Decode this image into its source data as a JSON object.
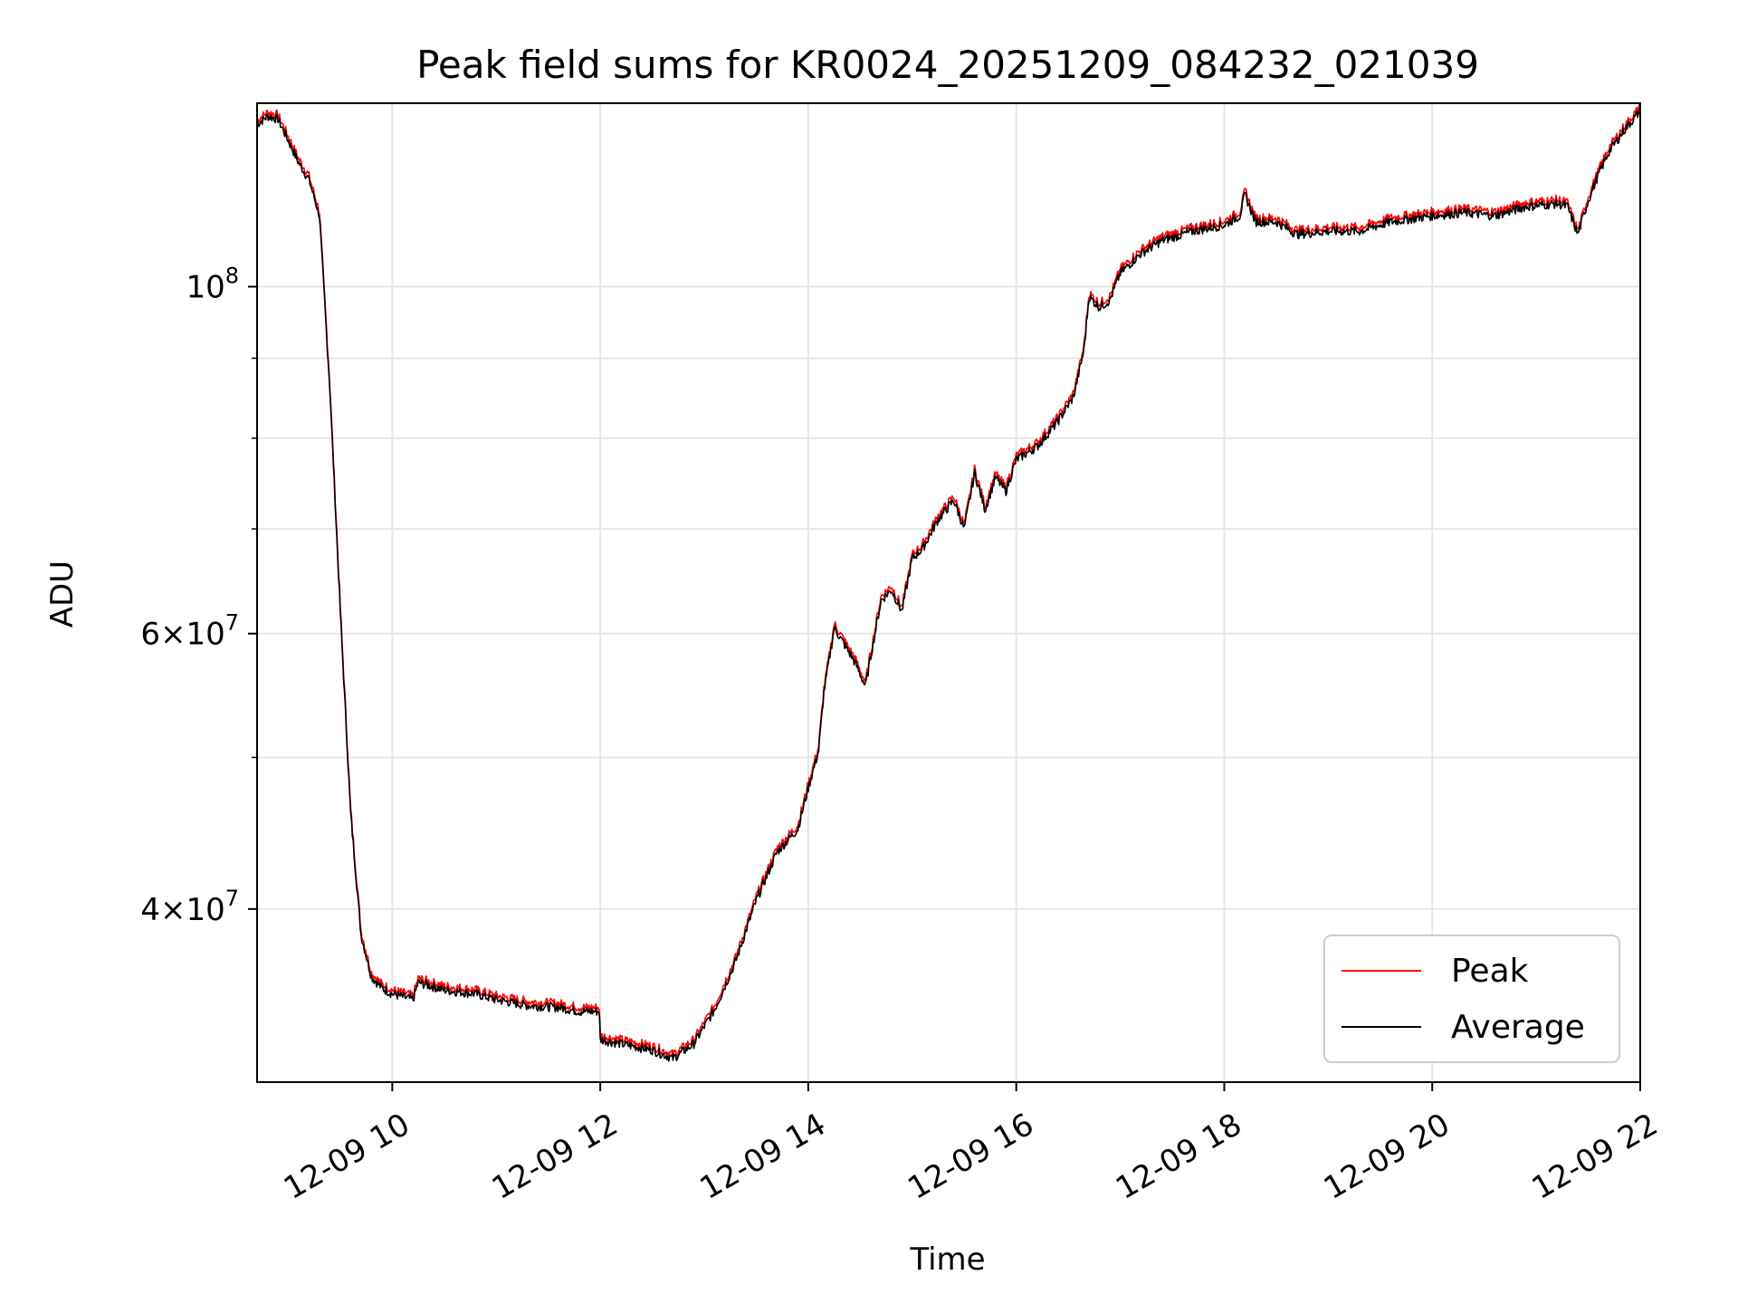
{
  "chart_data": {
    "type": "line",
    "title": "Peak field sums for KR0024_20251209_084232_021039",
    "xlabel": "Time",
    "ylabel": "ADU",
    "yscale": "log",
    "ylim": [
      31000000,
      131000000
    ],
    "xlim_hours": [
      8.7,
      22.0
    ],
    "grid": true,
    "x_ticks": [
      {
        "hour": 10,
        "label": "12-09 10"
      },
      {
        "hour": 12,
        "label": "12-09 12"
      },
      {
        "hour": 14,
        "label": "12-09 14"
      },
      {
        "hour": 16,
        "label": "12-09 16"
      },
      {
        "hour": 18,
        "label": "12-09 18"
      },
      {
        "hour": 20,
        "label": "12-09 20"
      },
      {
        "hour": 22,
        "label": "12-09 22"
      }
    ],
    "y_major_ticks": [
      {
        "value": 40000000,
        "base": "4",
        "exp": "7"
      },
      {
        "value": 60000000,
        "base": "6",
        "exp": "7"
      },
      {
        "value": 100000000,
        "base": "10",
        "exp": "8"
      }
    ],
    "y_minor_ticks": [
      50000000,
      70000000,
      80000000,
      90000000
    ],
    "legend": {
      "position": "lower-right",
      "entries": [
        "Peak",
        "Average"
      ]
    },
    "series": [
      {
        "name": "Peak",
        "color": "#ff0000",
        "offset": 1.006,
        "points": [
          [
            8.7,
            127000000
          ],
          [
            8.8,
            128500000
          ],
          [
            8.9,
            128000000
          ],
          [
            9.0,
            124000000
          ],
          [
            9.1,
            120000000
          ],
          [
            9.2,
            117000000
          ],
          [
            9.3,
            111000000
          ],
          [
            9.4,
            86000000
          ],
          [
            9.5,
            62000000
          ],
          [
            9.6,
            46000000
          ],
          [
            9.7,
            38500000
          ],
          [
            9.8,
            36200000
          ],
          [
            9.9,
            35600000
          ],
          [
            10.0,
            35300000
          ],
          [
            10.2,
            35000000
          ],
          [
            10.25,
            35900000
          ],
          [
            10.5,
            35500000
          ],
          [
            10.8,
            35300000
          ],
          [
            11.0,
            35000000
          ],
          [
            11.3,
            34700000
          ],
          [
            11.6,
            34600000
          ],
          [
            11.8,
            34400000
          ],
          [
            11.99,
            34400000
          ],
          [
            12.0,
            33000000
          ],
          [
            12.3,
            32700000
          ],
          [
            12.5,
            32500000
          ],
          [
            12.7,
            32100000
          ],
          [
            12.9,
            32800000
          ],
          [
            13.1,
            34500000
          ],
          [
            13.3,
            37000000
          ],
          [
            13.5,
            40500000
          ],
          [
            13.7,
            43500000
          ],
          [
            13.9,
            45000000
          ],
          [
            14.0,
            47800000
          ],
          [
            14.1,
            50500000
          ],
          [
            14.15,
            55000000
          ],
          [
            14.25,
            60500000
          ],
          [
            14.35,
            59000000
          ],
          [
            14.45,
            57500000
          ],
          [
            14.55,
            55500000
          ],
          [
            14.6,
            58000000
          ],
          [
            14.7,
            63000000
          ],
          [
            14.8,
            64000000
          ],
          [
            14.9,
            62000000
          ],
          [
            15.0,
            67000000
          ],
          [
            15.1,
            68000000
          ],
          [
            15.25,
            71000000
          ],
          [
            15.4,
            73000000
          ],
          [
            15.5,
            70000000
          ],
          [
            15.6,
            76000000
          ],
          [
            15.7,
            72000000
          ],
          [
            15.8,
            75500000
          ],
          [
            15.9,
            74000000
          ],
          [
            16.0,
            77500000
          ],
          [
            16.2,
            79000000
          ],
          [
            16.4,
            82000000
          ],
          [
            16.55,
            85000000
          ],
          [
            16.65,
            91000000
          ],
          [
            16.7,
            98500000
          ],
          [
            16.8,
            97000000
          ],
          [
            16.9,
            98000000
          ],
          [
            17.0,
            102000000
          ],
          [
            17.2,
            105000000
          ],
          [
            17.4,
            107000000
          ],
          [
            17.7,
            108500000
          ],
          [
            18.0,
            109500000
          ],
          [
            18.15,
            111000000
          ],
          [
            18.2,
            114500000
          ],
          [
            18.3,
            110000000
          ],
          [
            18.5,
            110000000
          ],
          [
            18.7,
            108000000
          ],
          [
            19.0,
            108500000
          ],
          [
            19.3,
            108500000
          ],
          [
            19.6,
            110000000
          ],
          [
            20.0,
            111000000
          ],
          [
            20.3,
            111500000
          ],
          [
            20.6,
            111000000
          ],
          [
            20.9,
            112500000
          ],
          [
            21.2,
            113000000
          ],
          [
            21.3,
            112500000
          ],
          [
            21.4,
            108000000
          ],
          [
            21.5,
            113500000
          ],
          [
            21.6,
            118000000
          ],
          [
            21.7,
            122000000
          ],
          [
            21.85,
            126000000
          ],
          [
            22.0,
            129500000
          ]
        ]
      },
      {
        "name": "Average",
        "color": "#000000",
        "offset": 1.0,
        "points": [
          [
            8.7,
            127000000
          ],
          [
            8.8,
            128500000
          ],
          [
            8.9,
            128000000
          ],
          [
            9.0,
            124000000
          ],
          [
            9.1,
            120000000
          ],
          [
            9.2,
            117000000
          ],
          [
            9.3,
            111000000
          ],
          [
            9.4,
            86000000
          ],
          [
            9.5,
            62000000
          ],
          [
            9.6,
            46000000
          ],
          [
            9.7,
            38500000
          ],
          [
            9.8,
            36200000
          ],
          [
            9.9,
            35600000
          ],
          [
            10.0,
            35300000
          ],
          [
            10.2,
            35000000
          ],
          [
            10.25,
            35900000
          ],
          [
            10.5,
            35500000
          ],
          [
            10.8,
            35300000
          ],
          [
            11.0,
            35000000
          ],
          [
            11.3,
            34700000
          ],
          [
            11.6,
            34600000
          ],
          [
            11.8,
            34400000
          ],
          [
            11.99,
            34400000
          ],
          [
            12.0,
            33000000
          ],
          [
            12.3,
            32700000
          ],
          [
            12.5,
            32500000
          ],
          [
            12.7,
            32100000
          ],
          [
            12.9,
            32800000
          ],
          [
            13.1,
            34500000
          ],
          [
            13.3,
            37000000
          ],
          [
            13.5,
            40500000
          ],
          [
            13.7,
            43500000
          ],
          [
            13.9,
            45000000
          ],
          [
            14.0,
            47800000
          ],
          [
            14.1,
            50500000
          ],
          [
            14.15,
            55000000
          ],
          [
            14.25,
            60500000
          ],
          [
            14.35,
            59000000
          ],
          [
            14.45,
            57500000
          ],
          [
            14.55,
            55500000
          ],
          [
            14.6,
            58000000
          ],
          [
            14.7,
            63000000
          ],
          [
            14.8,
            64000000
          ],
          [
            14.9,
            62000000
          ],
          [
            15.0,
            67000000
          ],
          [
            15.1,
            68000000
          ],
          [
            15.25,
            71000000
          ],
          [
            15.4,
            73000000
          ],
          [
            15.5,
            70000000
          ],
          [
            15.6,
            76000000
          ],
          [
            15.7,
            72000000
          ],
          [
            15.8,
            75500000
          ],
          [
            15.9,
            74000000
          ],
          [
            16.0,
            77500000
          ],
          [
            16.2,
            79000000
          ],
          [
            16.4,
            82000000
          ],
          [
            16.55,
            85000000
          ],
          [
            16.65,
            91000000
          ],
          [
            16.7,
            98500000
          ],
          [
            16.8,
            97000000
          ],
          [
            16.9,
            98000000
          ],
          [
            17.0,
            102000000
          ],
          [
            17.2,
            105000000
          ],
          [
            17.4,
            107000000
          ],
          [
            17.7,
            108500000
          ],
          [
            18.0,
            109500000
          ],
          [
            18.15,
            111000000
          ],
          [
            18.2,
            114500000
          ],
          [
            18.3,
            110000000
          ],
          [
            18.5,
            110000000
          ],
          [
            18.7,
            108000000
          ],
          [
            19.0,
            108500000
          ],
          [
            19.3,
            108500000
          ],
          [
            19.6,
            110000000
          ],
          [
            20.0,
            111000000
          ],
          [
            20.3,
            111500000
          ],
          [
            20.6,
            111000000
          ],
          [
            20.9,
            112500000
          ],
          [
            21.2,
            113000000
          ],
          [
            21.3,
            112500000
          ],
          [
            21.4,
            108000000
          ],
          [
            21.5,
            113500000
          ],
          [
            21.6,
            118000000
          ],
          [
            21.7,
            122000000
          ],
          [
            21.85,
            126000000
          ],
          [
            22.0,
            129500000
          ]
        ]
      }
    ]
  }
}
